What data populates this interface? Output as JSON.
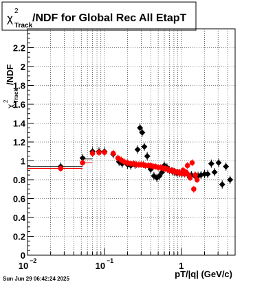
{
  "title": {
    "chi": "χ",
    "sup": "2",
    "sub": "Track",
    "rest": "/NDF for Global Rec All EtapT"
  },
  "ylabel": {
    "chi": "χ",
    "sup": "2",
    "sub": "Track",
    "rest": "/NDF"
  },
  "xlabel": "pT/|q| (GeV/c)",
  "footer": "Sun Jun 29 06:42:24 2025",
  "chart_data": {
    "type": "scatter",
    "xscale": "log",
    "xlim": [
      0.01,
      5
    ],
    "ylim": [
      0,
      2.4
    ],
    "grid": true,
    "x_ticks": [
      {
        "value": 0.01,
        "base": "10",
        "exp": "−2"
      },
      {
        "value": 0.1,
        "base": "10",
        "exp": "−1"
      },
      {
        "value": 1,
        "base": "1",
        "exp": ""
      }
    ],
    "y_ticks": [
      "0",
      "0.2",
      "0.4",
      "0.6",
      "0.8",
      "1",
      "1.2",
      "1.4",
      "1.6",
      "1.8",
      "2",
      "2.2"
    ],
    "series": [
      {
        "color": "#000000",
        "marker": "diamond",
        "points": [
          [
            0.027,
            0.94
          ],
          [
            0.052,
            1.03
          ],
          [
            0.07,
            1.1
          ],
          [
            0.085,
            1.1
          ],
          [
            0.1,
            1.1
          ],
          [
            0.13,
            1.07
          ],
          [
            0.155,
            0.99
          ],
          [
            0.17,
            0.97
          ],
          [
            0.2,
            0.96
          ],
          [
            0.22,
            0.95
          ],
          [
            0.25,
            0.96
          ],
          [
            0.27,
            1.12
          ],
          [
            0.29,
            1.35
          ],
          [
            0.31,
            1.3
          ],
          [
            0.33,
            1.15
          ],
          [
            0.36,
            1.05
          ],
          [
            0.4,
            0.91
          ],
          [
            0.44,
            0.84
          ],
          [
            0.48,
            0.82
          ],
          [
            0.52,
            0.84
          ],
          [
            0.56,
            0.88
          ],
          [
            0.6,
            0.95
          ],
          [
            0.65,
            0.93
          ],
          [
            0.7,
            0.9
          ],
          [
            0.76,
            0.89
          ],
          [
            0.82,
            0.88
          ],
          [
            0.88,
            0.87
          ],
          [
            0.95,
            0.87
          ],
          [
            1.02,
            0.87
          ],
          [
            1.1,
            0.87
          ],
          [
            1.2,
            0.86
          ],
          [
            1.35,
            0.85
          ],
          [
            1.5,
            0.84
          ],
          [
            1.65,
            0.84
          ],
          [
            1.8,
            0.85
          ],
          [
            2.0,
            0.86
          ],
          [
            2.2,
            0.86
          ],
          [
            2.45,
            0.97
          ],
          [
            2.7,
            0.88
          ],
          [
            3.05,
            0.98
          ],
          [
            3.4,
            0.75
          ],
          [
            3.8,
            0.94
          ],
          [
            4.3,
            0.8
          ]
        ]
      },
      {
        "color": "#ff0000",
        "marker": "circle",
        "points": [
          [
            0.027,
            0.92
          ],
          [
            0.052,
            0.98
          ],
          [
            0.07,
            1.08
          ],
          [
            0.085,
            1.09
          ],
          [
            0.1,
            1.09
          ],
          [
            0.13,
            1.08
          ],
          [
            0.15,
            1.03
          ],
          [
            0.165,
            1.01
          ],
          [
            0.18,
            0.99
          ],
          [
            0.2,
            0.98
          ],
          [
            0.22,
            0.97
          ],
          [
            0.24,
            0.97
          ],
          [
            0.26,
            0.96
          ],
          [
            0.28,
            0.96
          ],
          [
            0.3,
            0.96
          ],
          [
            0.32,
            0.96
          ],
          [
            0.34,
            0.95
          ],
          [
            0.37,
            0.95
          ],
          [
            0.4,
            0.95
          ],
          [
            0.43,
            0.94
          ],
          [
            0.46,
            0.94
          ],
          [
            0.5,
            0.93
          ],
          [
            0.54,
            0.93
          ],
          [
            0.58,
            0.92
          ],
          [
            0.62,
            0.92
          ],
          [
            0.66,
            0.91
          ],
          [
            0.7,
            0.9
          ],
          [
            0.75,
            0.9
          ],
          [
            0.8,
            0.89
          ],
          [
            0.85,
            0.88
          ],
          [
            0.9,
            0.88
          ],
          [
            0.95,
            0.87
          ],
          [
            1.0,
            0.87
          ],
          [
            1.05,
            0.9
          ],
          [
            1.1,
            0.86
          ],
          [
            1.15,
            0.88
          ],
          [
            1.2,
            0.95
          ],
          [
            1.25,
            0.85
          ],
          [
            1.3,
            0.82
          ],
          [
            1.38,
            0.98
          ],
          [
            1.45,
            0.7
          ],
          [
            1.52,
            0.85
          ],
          [
            1.6,
            0.8
          ]
        ]
      }
    ]
  }
}
